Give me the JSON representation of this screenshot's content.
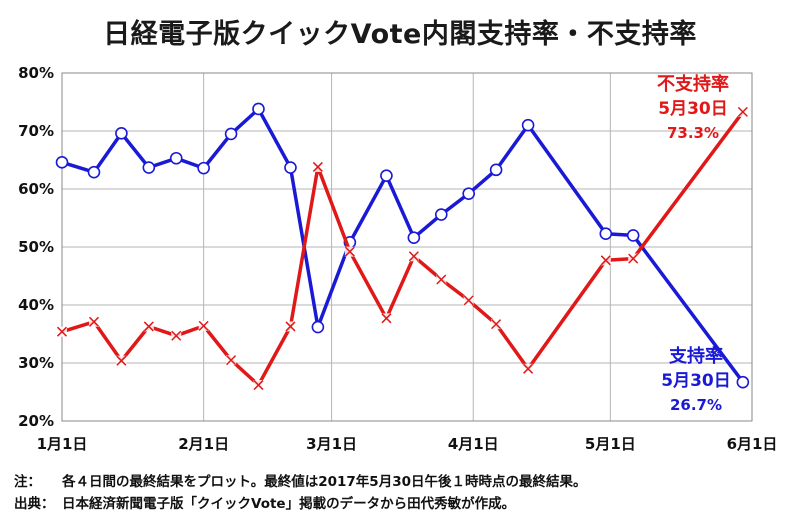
{
  "chart_data": {
    "type": "line",
    "title": "日経電子版クイックVote内閣支持率・不支持率",
    "x_unit": "day",
    "x_tick_labels": [
      "1月1日",
      "2月1日",
      "3月1日",
      "4月1日",
      "5月1日",
      "6月1日"
    ],
    "x_ticks": [
      "2017-01-01",
      "2017-02-01",
      "2017-03-01",
      "2017-04-01",
      "2017-05-01",
      "2017-06-01"
    ],
    "xlim": [
      "2017-01-01",
      "2017-06-01"
    ],
    "y_tick_labels": [
      "20%",
      "30%",
      "40%",
      "50%",
      "60%",
      "70%",
      "80%"
    ],
    "ylim": [
      20,
      80
    ],
    "grid": {
      "x": true,
      "y": true
    },
    "series": [
      {
        "name": "支持率",
        "color": "#1a1ad6",
        "marker": "circle",
        "points": [
          [
            "2017-01-01",
            64.6
          ],
          [
            "2017-01-08",
            62.9
          ],
          [
            "2017-01-14",
            69.6
          ],
          [
            "2017-01-20",
            63.7
          ],
          [
            "2017-01-26",
            65.3
          ],
          [
            "2017-02-01",
            63.6
          ],
          [
            "2017-02-07",
            69.5
          ],
          [
            "2017-02-13",
            73.8
          ],
          [
            "2017-02-20",
            63.7
          ],
          [
            "2017-02-26",
            36.2
          ],
          [
            "2017-03-05",
            50.8
          ],
          [
            "2017-03-13",
            62.3
          ],
          [
            "2017-03-19",
            51.6
          ],
          [
            "2017-03-25",
            55.6
          ],
          [
            "2017-03-31",
            59.2
          ],
          [
            "2017-04-06",
            63.3
          ],
          [
            "2017-04-13",
            71.0
          ],
          [
            "2017-04-30",
            52.3
          ],
          [
            "2017-05-06",
            52.0
          ],
          [
            "2017-05-30",
            26.7
          ]
        ]
      },
      {
        "name": "不支持率",
        "color": "#e01818",
        "marker": "x",
        "points": [
          [
            "2017-01-01",
            35.4
          ],
          [
            "2017-01-08",
            37.1
          ],
          [
            "2017-01-14",
            30.4
          ],
          [
            "2017-01-20",
            36.3
          ],
          [
            "2017-01-26",
            34.7
          ],
          [
            "2017-02-01",
            36.4
          ],
          [
            "2017-02-07",
            30.5
          ],
          [
            "2017-02-13",
            26.2
          ],
          [
            "2017-02-20",
            36.3
          ],
          [
            "2017-02-26",
            63.8
          ],
          [
            "2017-03-05",
            49.2
          ],
          [
            "2017-03-13",
            37.7
          ],
          [
            "2017-03-19",
            48.4
          ],
          [
            "2017-03-25",
            44.4
          ],
          [
            "2017-03-31",
            40.8
          ],
          [
            "2017-04-06",
            36.7
          ],
          [
            "2017-04-13",
            29.0
          ],
          [
            "2017-04-30",
            47.7
          ],
          [
            "2017-05-06",
            48.0
          ],
          [
            "2017-05-30",
            73.3
          ]
        ]
      }
    ],
    "annotations": [
      {
        "series": "不支持率",
        "lines": [
          "不支持率",
          "5月30日",
          "73.3%"
        ]
      },
      {
        "series": "支持率",
        "lines": [
          "支持率",
          "5月30日",
          "26.7%"
        ]
      }
    ]
  },
  "notes": {
    "note_label": "注：",
    "note_text": "各４日間の最終結果をプロット。最終値は2017年5月30日午後１時時点の最終結果。",
    "source_label": "出典：",
    "source_text": "日本経済新聞電子版「クイックVote」掲載のデータから田代秀敏が作成。"
  }
}
